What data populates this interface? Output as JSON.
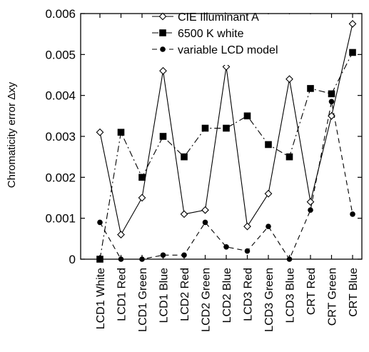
{
  "chart_data": {
    "type": "line",
    "ylabel": "Chromaticity error Δxy",
    "xlabel": "",
    "categories": [
      "LCD1 White",
      "LCD1 Red",
      "LCD1 Green",
      "LCD1 Blue",
      "LCD2 Red",
      "LCD2 Green",
      "LCD2 Blue",
      "LCD3 Red",
      "LCD3 Green",
      "LCD3 Blue",
      "CRT Red",
      "CRT Green",
      "CRT Blue"
    ],
    "ylim": [
      0,
      0.006
    ],
    "yticks": [
      0,
      0.001,
      0.002,
      0.003,
      0.004,
      0.005,
      0.006
    ],
    "ytick_labels": [
      "0",
      "0.001",
      "0.002",
      "0.003",
      "0.004",
      "0.005",
      "0.006"
    ],
    "grid": false,
    "legend_position": "top",
    "series": [
      {
        "name": "CIE Illuminant A",
        "marker": "open-diamond",
        "line": "solid",
        "values": [
          0.0031,
          0.0006,
          0.0015,
          0.0046,
          0.0011,
          0.0012,
          0.0047,
          0.0008,
          0.0016,
          0.0044,
          0.0014,
          0.0035,
          0.00575
        ]
      },
      {
        "name": "6500 K white",
        "marker": "filled-square",
        "line": "dash-dot",
        "values": [
          0.0,
          0.0031,
          0.002,
          0.003,
          0.0025,
          0.0032,
          0.0032,
          0.0035,
          0.0028,
          0.0025,
          0.00417,
          0.00404,
          0.00505
        ]
      },
      {
        "name": "variable LCD model",
        "marker": "filled-circle",
        "line": "dashed",
        "values": [
          0.0009,
          0.0,
          0.0,
          0.0001,
          0.0001,
          0.0009,
          0.0003,
          0.0002,
          0.0008,
          0.0,
          0.0012,
          0.00385,
          0.0011
        ]
      }
    ]
  }
}
